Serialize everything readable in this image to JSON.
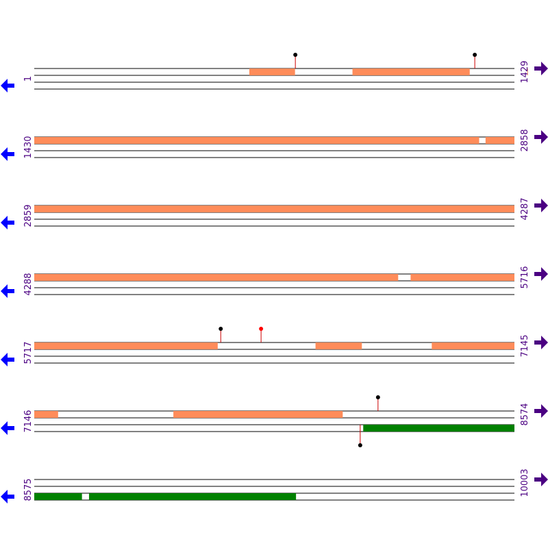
{
  "colors": {
    "orf_top": "#ff8c5a",
    "orf_bottom": "#008000",
    "line": "#000000",
    "label": "#4b0082",
    "arrow_forward": "#4b0082",
    "arrow_reverse": "#0000ff",
    "stem": "#cc0000",
    "marker_black": "#000000",
    "marker_red": "#ff0000"
  },
  "icons": {
    "forward_arrow": "arrow-right-icon",
    "reverse_arrow": "arrow-left-icon"
  },
  "rows": [
    {
      "start": "1",
      "end": "1429",
      "start_bp": 1,
      "end_bp": 1429,
      "top_segments": [
        [
          641,
          776
        ],
        [
          948,
          1296
        ],
        [
          1468,
          1429
        ]
      ],
      "bottom_segments": [],
      "top_markers": [
        {
          "pos": 778,
          "color": "black"
        },
        {
          "pos": 1312,
          "color": "black"
        }
      ],
      "bottom_markers": []
    },
    {
      "start": "1430",
      "end": "2858",
      "start_bp": 1430,
      "end_bp": 2858,
      "top_segments": [
        [
          1430,
          2753
        ],
        [
          2773,
          2858
        ]
      ],
      "bottom_segments": [],
      "top_markers": [],
      "bottom_markers": []
    },
    {
      "start": "2859",
      "end": "4287",
      "start_bp": 2859,
      "end_bp": 4287,
      "top_segments": [
        [
          2859,
          4287
        ]
      ],
      "bottom_segments": [],
      "top_markers": [],
      "bottom_markers": []
    },
    {
      "start": "4288",
      "end": "5716",
      "start_bp": 4288,
      "end_bp": 5716,
      "top_segments": [
        [
          4288,
          5370
        ],
        [
          5408,
          5716
        ]
      ],
      "bottom_segments": [],
      "top_markers": [],
      "bottom_markers": []
    },
    {
      "start": "5717",
      "end": "7145",
      "start_bp": 5717,
      "end_bp": 7145,
      "top_segments": [
        [
          5717,
          6262
        ],
        [
          6554,
          6691
        ],
        [
          6900,
          7145
        ]
      ],
      "bottom_segments": [],
      "top_markers": [
        {
          "pos": 6272,
          "color": "black"
        },
        {
          "pos": 6392,
          "color": "red"
        }
      ],
      "bottom_markers": []
    },
    {
      "start": "7146",
      "end": "8574",
      "start_bp": 7146,
      "end_bp": 8574,
      "top_segments": [
        [
          7146,
          7216
        ],
        [
          7560,
          8063
        ]
      ],
      "bottom_segments": [
        [
          8125,
          8574
        ]
      ],
      "top_markers": [
        {
          "pos": 8169,
          "color": "black"
        }
      ],
      "bottom_markers": [
        {
          "pos": 8116,
          "color": "black"
        }
      ]
    },
    {
      "start": "8575",
      "end": "10003",
      "start_bp": 8575,
      "end_bp": 10003,
      "top_segments": [],
      "bottom_segments": [
        [
          8575,
          8716
        ],
        [
          8738,
          9353
        ]
      ],
      "top_markers": [],
      "bottom_markers": []
    }
  ]
}
